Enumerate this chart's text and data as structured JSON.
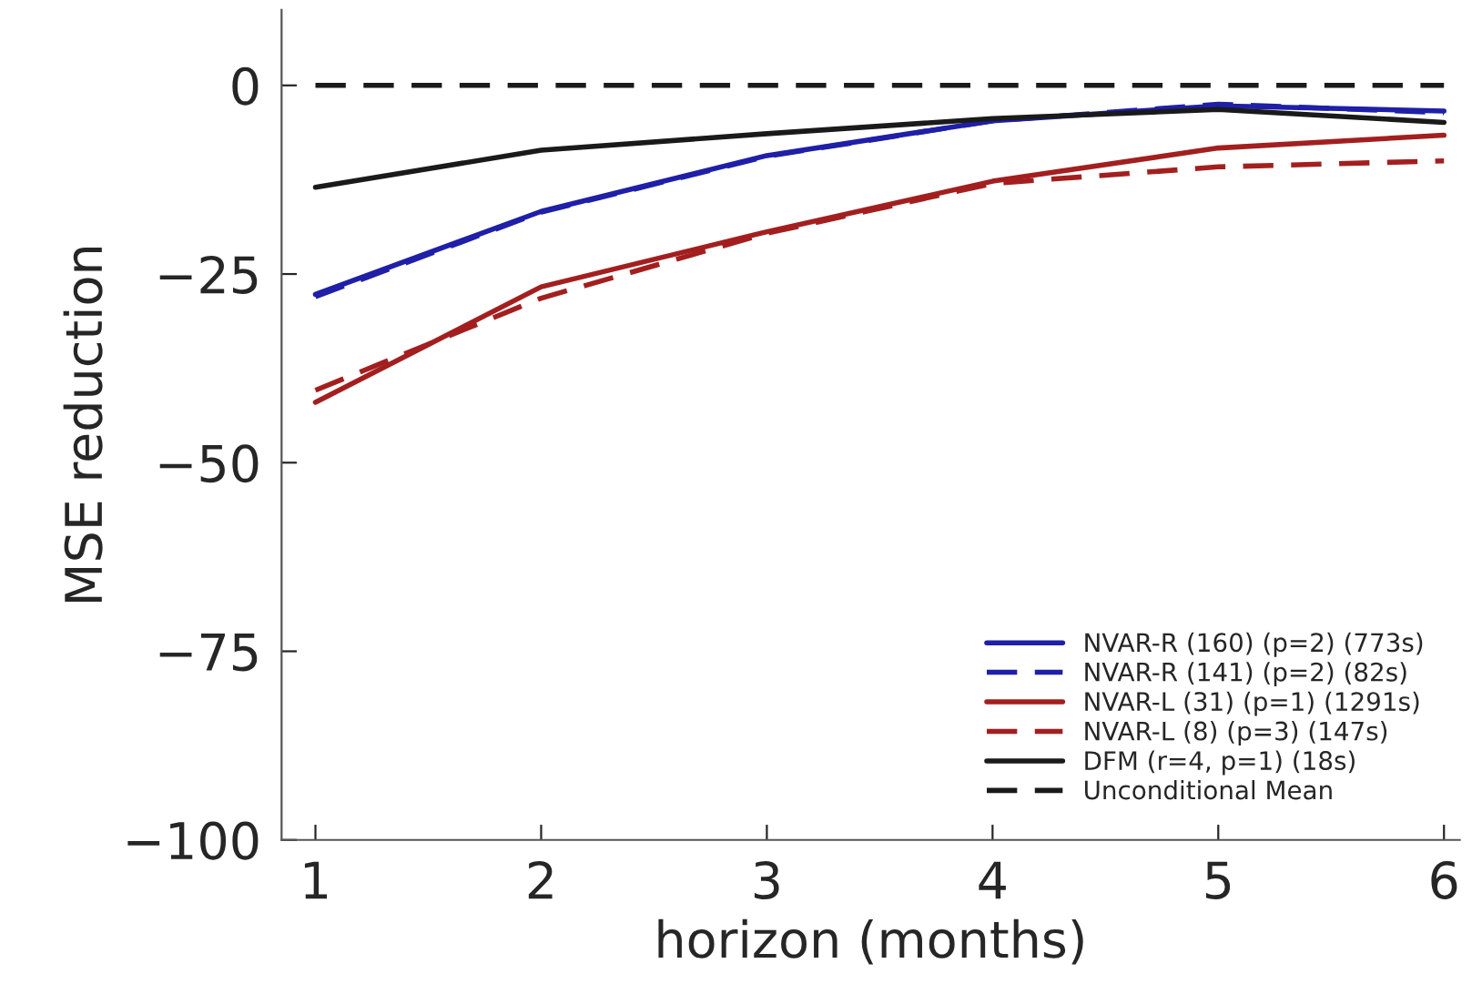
{
  "chart_data": {
    "type": "line",
    "xlabel": "horizon (months)",
    "ylabel": "MSE reduction",
    "x": [
      1,
      2,
      3,
      4,
      5,
      6
    ],
    "xlim": [
      0.85,
      6.07
    ],
    "xticks": [
      1,
      2,
      3,
      4,
      5,
      6
    ],
    "ylim": [
      -100,
      10
    ],
    "yticks": [
      {
        "value": 0,
        "label": "0"
      },
      {
        "value": -25,
        "label": "−25"
      },
      {
        "value": -50,
        "label": "−50"
      },
      {
        "value": -75,
        "label": "−75"
      },
      {
        "value": -100,
        "label": "−100"
      }
    ],
    "grid": false,
    "legend": "bottom right",
    "marker": "none",
    "series": [
      {
        "name": "NVAR-R (160) (p=2) (773s)",
        "color": "#1f1fa8",
        "line_style": "solid",
        "values": [
          -27.7,
          -16.7,
          -9.3,
          -4.7,
          -2.7,
          -3.4
        ]
      },
      {
        "name": "NVAR-R (141) (p=2) (82s)",
        "color": "#1f1fa8",
        "line_style": "dashed",
        "values": [
          -28,
          -16.8,
          -9.4,
          -4.7,
          -2.5,
          -3.6
        ]
      },
      {
        "name": "NVAR-L (31) (p=1) (1291s)",
        "color": "#a31f1f",
        "line_style": "solid",
        "values": [
          -42,
          -26.7,
          -19.4,
          -12.7,
          -8.3,
          -6.6
        ]
      },
      {
        "name": "NVAR-L (8) (p=3) (147s)",
        "color": "#a31f1f",
        "line_style": "dashed",
        "values": [
          -40.4,
          -28.2,
          -19.6,
          -13,
          -10.8,
          -10
        ]
      },
      {
        "name": "DFM (r=4, p=1) (18s)",
        "color": "#1a1a1a",
        "line_style": "solid",
        "values": [
          -13.5,
          -8.6,
          -6.4,
          -4.4,
          -3.2,
          -4.9
        ]
      },
      {
        "name": "Unconditional Mean",
        "color": "#1a1a1a",
        "line_style": "dashed",
        "values": [
          0,
          0,
          0,
          0,
          0,
          0
        ]
      }
    ]
  }
}
